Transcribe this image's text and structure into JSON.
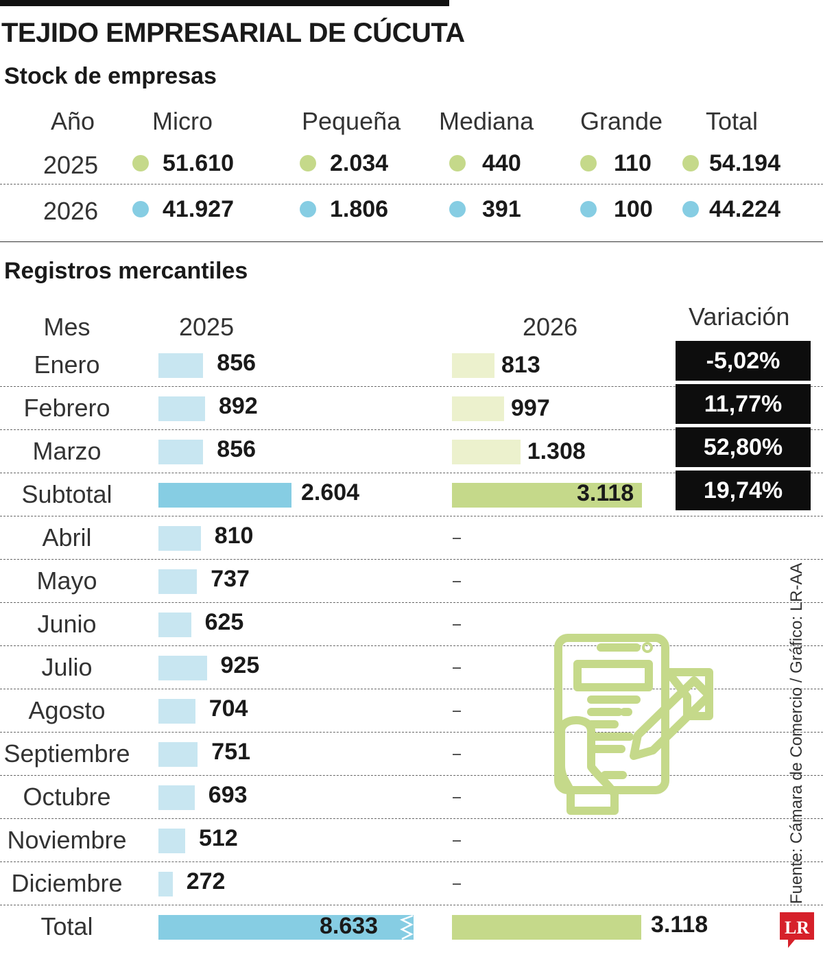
{
  "title": "TEJIDO EMPRESARIAL DE CÚCUTA",
  "stock": {
    "title": "Stock de empresas",
    "headers": [
      "Año",
      "Micro",
      "Pequeña",
      "Mediana",
      "Grande",
      "Total"
    ],
    "rows": [
      {
        "year": "2025",
        "color": "#c5d98a",
        "values": [
          "51.610",
          "2.034",
          "440",
          "110",
          "54.194"
        ]
      },
      {
        "year": "2026",
        "color": "#86cde3",
        "values": [
          "41.927",
          "1.806",
          "391",
          "100",
          "44.224"
        ]
      }
    ]
  },
  "registros": {
    "title": "Registros mercantiles",
    "headers": {
      "mes": "Mes",
      "y2025": "2025",
      "y2026": "2026",
      "variacion": "Variación"
    }
  },
  "chart_data": {
    "type": "bar",
    "title": "Registros mercantiles",
    "categories": [
      "Enero",
      "Febrero",
      "Marzo",
      "Subtotal",
      "Abril",
      "Mayo",
      "Junio",
      "Julio",
      "Agosto",
      "Septiembre",
      "Octubre",
      "Noviembre",
      "Diciembre",
      "Total"
    ],
    "series": [
      {
        "name": "2025",
        "values": [
          856,
          892,
          856,
          2604,
          810,
          737,
          625,
          925,
          704,
          751,
          693,
          512,
          272,
          8633
        ],
        "labels": [
          "856",
          "892",
          "856",
          "2.604",
          "810",
          "737",
          "625",
          "925",
          "704",
          "751",
          "693",
          "512",
          "272",
          "8.633"
        ]
      },
      {
        "name": "2026",
        "values": [
          813,
          997,
          1308,
          3118,
          null,
          null,
          null,
          null,
          null,
          null,
          null,
          null,
          null,
          3118
        ],
        "labels": [
          "813",
          "997",
          "1.308",
          "3.118",
          "-",
          "-",
          "-",
          "-",
          "-",
          "-",
          "-",
          "-",
          "-",
          "3.118"
        ]
      }
    ],
    "variacion": [
      "-5,02%",
      "11,77%",
      "52,80%",
      "19,74%"
    ],
    "colors": {
      "bar2025": "#c8e6f1",
      "bar2026": "#ecf1cd",
      "subtotal2025": "#86cde3",
      "subtotal2026": "#c5d98a"
    }
  },
  "source": "Fuente: Cámara de Comercio / Gráfico: LR-AA",
  "logo_text": "LR",
  "illustration_icon": "tablet-with-pen-and-hand-icon"
}
